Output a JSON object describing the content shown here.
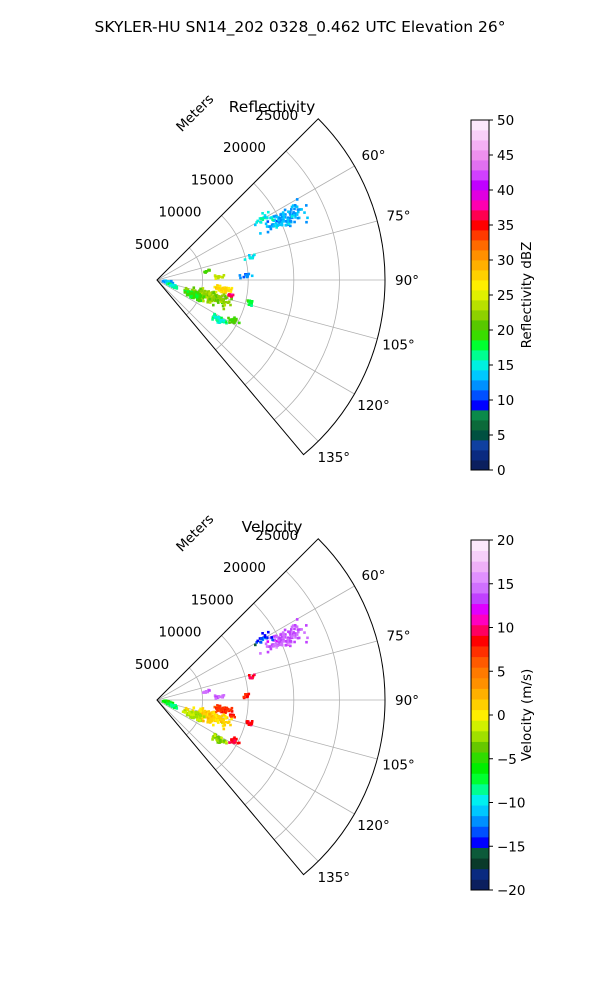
{
  "figure": {
    "title": "SKYLER-HU  SN14_202  0328_0.462 UTC Elevation 26°"
  },
  "colors": {
    "dbz_cmap": [
      "#0b1f5e",
      "#0a2a80",
      "#1040a0",
      "#005040",
      "#0c6a3a",
      "#0a8a4a",
      "#0000ff",
      "#0050ff",
      "#0090ff",
      "#00c8ff",
      "#00f0e0",
      "#00ff90",
      "#00ff30",
      "#3adc00",
      "#58c800",
      "#8ed000",
      "#b8e000",
      "#e0f000",
      "#ffee00",
      "#ffd000",
      "#ffb000",
      "#ff9000",
      "#ff6a00",
      "#ff3a00",
      "#ff0000",
      "#ff0050",
      "#ff00b0",
      "#e000e0",
      "#c000ff",
      "#d040ff",
      "#e070f0",
      "#ee90ee",
      "#f4b0f4",
      "#f8d0f8",
      "#fce8fc"
    ],
    "vel_cmap": [
      "#0b1f5e",
      "#0a2a80",
      "#0a3a2a",
      "#0c5a3a",
      "#0000ff",
      "#0050ff",
      "#0090ff",
      "#00c8ff",
      "#00f0f0",
      "#00ff90",
      "#00ff30",
      "#00ee00",
      "#30dc00",
      "#66c800",
      "#a0e000",
      "#d0f000",
      "#ffee00",
      "#ffd000",
      "#ffb000",
      "#ff9000",
      "#ff7a00",
      "#ff5a00",
      "#ff3000",
      "#ff0000",
      "#ff0060",
      "#ff00c0",
      "#e000ff",
      "#c040ff",
      "#d070ff",
      "#e090ff",
      "#eeb0f8",
      "#f6d0fa",
      "#fce8fc"
    ]
  },
  "chart_data": [
    {
      "type": "heatmap",
      "subplot": "polar-sector",
      "title": "Reflectivity",
      "range_label": "Meters",
      "range_ticks": [
        5000,
        10000,
        15000,
        20000,
        25000
      ],
      "range_tick_labels": [
        "5000",
        "10000",
        "15000",
        "20000",
        "25000"
      ],
      "rmax": 25000,
      "theta_range_deg": [
        45,
        140
      ],
      "theta_ticks": [
        60,
        75,
        90,
        105,
        120,
        135
      ],
      "theta_tick_labels": [
        "60°",
        "75°",
        "90°",
        "105°",
        "120°",
        "135°"
      ],
      "grid": true,
      "colorbar": {
        "label": "Reflectivity dBZ",
        "vmin": 0,
        "vmax": 50,
        "ticks": [
          0,
          5,
          10,
          15,
          20,
          25,
          30,
          35,
          40,
          45,
          50
        ],
        "tick_labels": [
          "0",
          "5",
          "10",
          "15",
          "20",
          "25",
          "30",
          "35",
          "40",
          "45",
          "50"
        ]
      },
      "echo_regions": [
        {
          "az": 64,
          "r": 15500,
          "daz": 5.5,
          "dr": 3500,
          "value": 13,
          "count": 110
        },
        {
          "az": 60,
          "r": 13500,
          "daz": 3,
          "dr": 1500,
          "value": 15,
          "count": 20
        },
        {
          "az": 76,
          "r": 10500,
          "daz": 2,
          "dr": 1000,
          "value": 14,
          "count": 10
        },
        {
          "az": 80,
          "r": 5500,
          "daz": 2,
          "dr": 600,
          "value": 20,
          "count": 8
        },
        {
          "az": 87,
          "r": 6800,
          "daz": 2,
          "dr": 700,
          "value": 24,
          "count": 16
        },
        {
          "az": 87,
          "r": 9700,
          "daz": 3,
          "dr": 1200,
          "value": 12,
          "count": 10
        },
        {
          "az": 98,
          "r": 7400,
          "daz": 4,
          "dr": 1500,
          "value": 27,
          "count": 55
        },
        {
          "az": 102,
          "r": 8300,
          "daz": 2,
          "dr": 800,
          "value": 37,
          "count": 14
        },
        {
          "az": 108,
          "r": 6000,
          "daz": 8,
          "dr": 3200,
          "value": 22,
          "count": 170
        },
        {
          "az": 113,
          "r": 4200,
          "daz": 7,
          "dr": 1500,
          "value": 19,
          "count": 80
        },
        {
          "az": 122,
          "r": 8000,
          "daz": 4,
          "dr": 1300,
          "value": 16,
          "count": 40
        },
        {
          "az": 104,
          "r": 10500,
          "daz": 2.5,
          "dr": 700,
          "value": 18,
          "count": 12
        },
        {
          "az": 101,
          "r": 1200,
          "daz": 10,
          "dr": 800,
          "value": 13,
          "count": 40
        },
        {
          "az": 110,
          "r": 1700,
          "daz": 6,
          "dr": 900,
          "value": 16,
          "count": 30
        },
        {
          "az": 118,
          "r": 9500,
          "daz": 3,
          "dr": 800,
          "value": 20,
          "count": 20
        }
      ]
    },
    {
      "type": "heatmap",
      "subplot": "polar-sector",
      "title": "Velocity",
      "range_label": "Meters",
      "range_ticks": [
        5000,
        10000,
        15000,
        20000,
        25000
      ],
      "range_tick_labels": [
        "5000",
        "10000",
        "15000",
        "20000",
        "25000"
      ],
      "rmax": 25000,
      "theta_range_deg": [
        45,
        140
      ],
      "theta_ticks": [
        60,
        75,
        90,
        105,
        120,
        135
      ],
      "theta_tick_labels": [
        "60°",
        "75°",
        "90°",
        "105°",
        "120°",
        "135°"
      ],
      "grid": true,
      "colorbar": {
        "label": "Velocity (m/s)",
        "vmin": -20,
        "vmax": 20,
        "ticks": [
          -20,
          -15,
          -10,
          -5,
          0,
          5,
          10,
          15,
          20
        ],
        "tick_labels": [
          "−20",
          "−15",
          "−10",
          "−5",
          "0",
          "5",
          "10",
          "15",
          "20"
        ]
      },
      "echo_regions": [
        {
          "az": 64,
          "r": 15500,
          "daz": 5.5,
          "dr": 3500,
          "value": 14,
          "count": 110
        },
        {
          "az": 60,
          "r": 13500,
          "daz": 3,
          "dr": 1500,
          "value": -14,
          "count": 20
        },
        {
          "az": 76,
          "r": 10500,
          "daz": 2,
          "dr": 1000,
          "value": 9,
          "count": 8
        },
        {
          "az": 80,
          "r": 5500,
          "daz": 2,
          "dr": 600,
          "value": 14,
          "count": 8
        },
        {
          "az": 87,
          "r": 6800,
          "daz": 2,
          "dr": 700,
          "value": 14,
          "count": 16
        },
        {
          "az": 87,
          "r": 9700,
          "daz": 3,
          "dr": 1200,
          "value": 8,
          "count": 8
        },
        {
          "az": 98,
          "r": 7400,
          "daz": 4,
          "dr": 1500,
          "value": 7,
          "count": 55
        },
        {
          "az": 102,
          "r": 8300,
          "daz": 2,
          "dr": 800,
          "value": 8,
          "count": 14
        },
        {
          "az": 108,
          "r": 6000,
          "daz": 8,
          "dr": 3200,
          "value": 1,
          "count": 170
        },
        {
          "az": 113,
          "r": 4200,
          "daz": 7,
          "dr": 1500,
          "value": -2,
          "count": 80
        },
        {
          "az": 122,
          "r": 8000,
          "daz": 4,
          "dr": 1300,
          "value": -3,
          "count": 40
        },
        {
          "az": 104,
          "r": 10500,
          "daz": 2.5,
          "dr": 700,
          "value": 9,
          "count": 12
        },
        {
          "az": 101,
          "r": 1200,
          "daz": 10,
          "dr": 800,
          "value": -6,
          "count": 40
        },
        {
          "az": 110,
          "r": 1700,
          "daz": 6,
          "dr": 900,
          "value": -8,
          "count": 30
        },
        {
          "az": 118,
          "r": 9500,
          "daz": 3,
          "dr": 800,
          "value": 9,
          "count": 20
        }
      ]
    }
  ]
}
